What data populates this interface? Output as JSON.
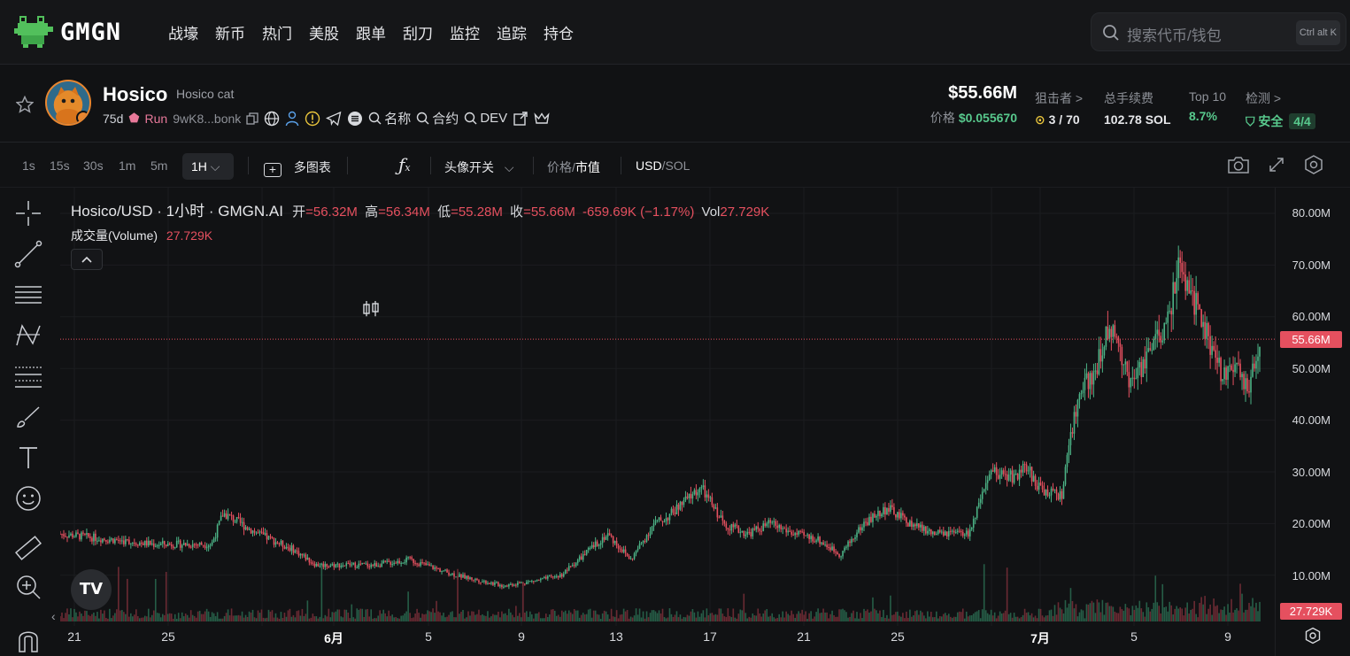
{
  "app": {
    "brand": "GMGN"
  },
  "nav": [
    "战壕",
    "新币",
    "热门",
    "美股",
    "跟单",
    "刮刀",
    "监控",
    "追踪",
    "持仓"
  ],
  "search": {
    "placeholder": "搜索代币/钱包",
    "shortcut": "Ctrl alt K"
  },
  "token": {
    "symbol": "Hosico",
    "name": "Hosico cat",
    "age": "75d",
    "platform": "Run",
    "address": "9wK8...bonk",
    "links": {
      "name": "名称",
      "contract": "合约",
      "dev": "DEV"
    },
    "market_cap": "$55.66M",
    "price_label": "价格",
    "price": "$0.055670"
  },
  "stats": [
    {
      "label": "狙击者 >",
      "value": "3 / 70"
    },
    {
      "label": "总手续费",
      "value": "102.78 SOL"
    },
    {
      "label": "Top 10",
      "value": "8.7%"
    },
    {
      "label": "检测 >",
      "value": "安全",
      "badge": "4/4"
    }
  ],
  "toolbar": {
    "timeframes": [
      "1s",
      "15s",
      "30s",
      "1m",
      "5m"
    ],
    "active_timeframe": "1H",
    "multi_chart": "多图表",
    "avatar_toggle": "头像开关",
    "price_label": "价格",
    "mcap_label": "市值",
    "usd": "USD",
    "sol": "SOL"
  },
  "legend": {
    "title": "Hosico/USD · 1小时 · GMGN.AI",
    "open_label": "开",
    "open": "=56.32M",
    "high_label": "高",
    "high": "=56.34M",
    "low_label": "低",
    "low": "=55.28M",
    "close_label": "收",
    "close": "=55.66M",
    "change": "-659.69K (−1.17%)",
    "vol_label": "Vol",
    "vol": "27.729K",
    "volume_label": "成交量(Volume)",
    "volume_value": "27.729K"
  },
  "chart_data": {
    "type": "candlestick",
    "y_ticks": [
      "80.00M",
      "70.00M",
      "60.00M",
      "50.00M",
      "40.00M",
      "30.00M",
      "20.00M",
      "10.00M"
    ],
    "y_range": [
      0,
      80
    ],
    "x_ticks": [
      "21",
      "25",
      "6月",
      "5",
      "9",
      "13",
      "17",
      "21",
      "25",
      "7月",
      "5",
      "9"
    ],
    "current_price_tag": "55.66M",
    "current_volume_tag": "27.729K",
    "current_value_millions": 55.66,
    "trend": [
      [
        0,
        18
      ],
      [
        0.04,
        17
      ],
      [
        0.08,
        16
      ],
      [
        0.13,
        16
      ],
      [
        0.14,
        22
      ],
      [
        0.17,
        18
      ],
      [
        0.2,
        15
      ],
      [
        0.22,
        12
      ],
      [
        0.27,
        12
      ],
      [
        0.3,
        13
      ],
      [
        0.34,
        10
      ],
      [
        0.38,
        8
      ],
      [
        0.41,
        9
      ],
      [
        0.43,
        10
      ],
      [
        0.45,
        14
      ],
      [
        0.47,
        18
      ],
      [
        0.49,
        13
      ],
      [
        0.51,
        20
      ],
      [
        0.52,
        21
      ],
      [
        0.55,
        27
      ],
      [
        0.57,
        20
      ],
      [
        0.59,
        18
      ],
      [
        0.61,
        20
      ],
      [
        0.63,
        18
      ],
      [
        0.65,
        17
      ],
      [
        0.67,
        14
      ],
      [
        0.69,
        20
      ],
      [
        0.71,
        23
      ],
      [
        0.73,
        20
      ],
      [
        0.75,
        18
      ],
      [
        0.78,
        18
      ],
      [
        0.8,
        30
      ],
      [
        0.82,
        29
      ],
      [
        0.83,
        31
      ],
      [
        0.84,
        27
      ],
      [
        0.86,
        25
      ],
      [
        0.87,
        40
      ],
      [
        0.88,
        47
      ],
      [
        0.89,
        50
      ],
      [
        0.9,
        58
      ],
      [
        0.91,
        53
      ],
      [
        0.92,
        47
      ],
      [
        0.93,
        50
      ],
      [
        0.94,
        55
      ],
      [
        0.95,
        58
      ],
      [
        0.96,
        70
      ],
      [
        0.97,
        65
      ],
      [
        0.98,
        60
      ],
      [
        0.99,
        52
      ],
      [
        1.0,
        48
      ],
      [
        1.01,
        50
      ],
      [
        1.02,
        45
      ],
      [
        1.03,
        55.66
      ]
    ]
  }
}
